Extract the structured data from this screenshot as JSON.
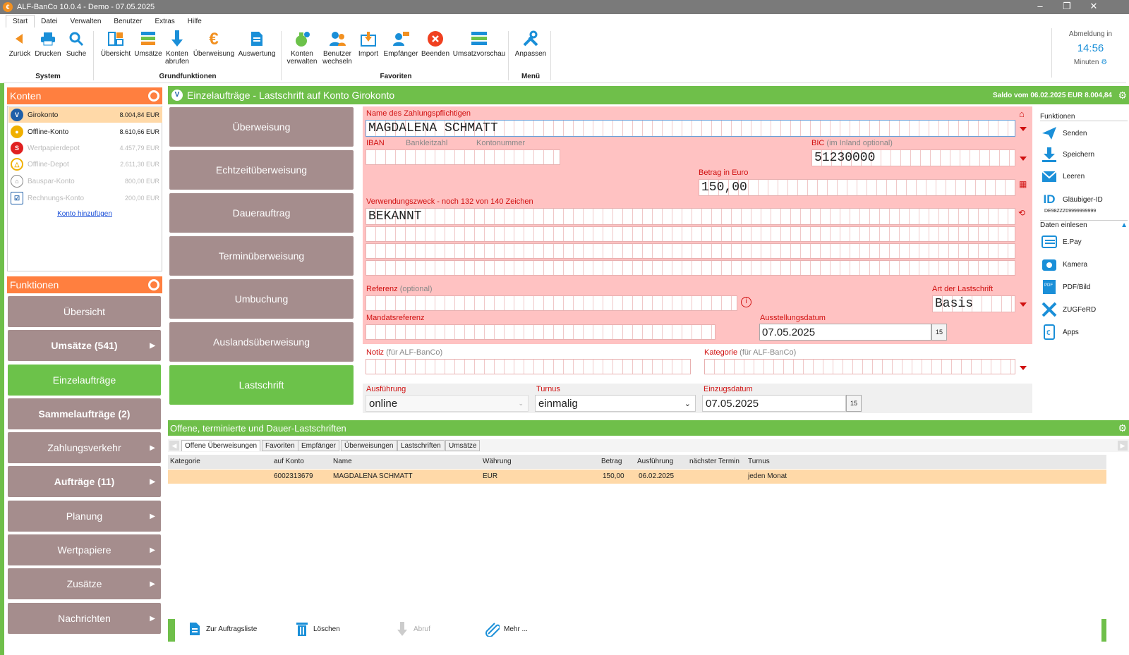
{
  "window": {
    "title": "ALF-BanCo 10.0.4 - Demo  - 07.05.2025",
    "minimize": "–",
    "maximize": "❐",
    "close": "✕"
  },
  "menu": [
    "Start",
    "Datei",
    "Verwalten",
    "Benutzer",
    "Extras",
    "Hilfe"
  ],
  "ribbon": {
    "system": {
      "title": "System",
      "buttons": [
        "Zurück",
        "Drucken",
        "Suche"
      ]
    },
    "grund": {
      "title": "Grundfunktionen",
      "buttons": [
        "Übersicht",
        "Umsätze",
        "Konten\nabrufen",
        "Überweisung",
        "Auswertung"
      ]
    },
    "favoriten": {
      "title": "Favoriten",
      "buttons": [
        "Konten\nverwalten",
        "Benutzer\nwechseln",
        "Import",
        "Empfänger",
        "Beenden",
        "Umsatzvorschau"
      ]
    },
    "menue": {
      "title": "Menü",
      "buttons": [
        "Anpassen"
      ]
    }
  },
  "session": {
    "label": "Abmeldung in",
    "time": "14:56",
    "unit": "Minuten"
  },
  "konten": {
    "title": "Konten",
    "items": [
      {
        "name": "Girokonto",
        "value": "8.004,84 EUR",
        "color": "#1f5fa8"
      },
      {
        "name": "Offline-Konto",
        "value": "8.610,66 EUR",
        "color": "#f0b000"
      },
      {
        "name": "Wertpapierdepot",
        "value": "4.457,79 EUR",
        "color": "#e02020"
      },
      {
        "name": "Offline-Depot",
        "value": "2.611,30 EUR",
        "color": "#f0b000"
      },
      {
        "name": "Bauspar-Konto",
        "value": "800,00 EUR",
        "color": "#888"
      },
      {
        "name": "Rechnungs-Konto",
        "value": "200,00 EUR",
        "color": "#1f5fa8"
      }
    ],
    "add": "Konto hinzufügen"
  },
  "funktionen": {
    "title": "Funktionen",
    "items": [
      "Übersicht",
      "Umsätze (541)",
      "Einzelaufträge",
      "Sammelaufträge (2)",
      "Zahlungsverkehr",
      "Aufträge (11)",
      "Planung",
      "Wertpapiere",
      "Zusätze",
      "Nachrichten"
    ]
  },
  "main": {
    "title": "Einzelaufträge - Lastschrift auf Konto Girokonto",
    "saldo": "Saldo vom 06.02.2025 EUR 8.004,84"
  },
  "types": [
    "Überweisung",
    "Echtzeitüberweisung",
    "Dauerauftrag",
    "Terminüberweisung",
    "Umbuchung",
    "Auslandsüberweisung",
    "Lastschrift"
  ],
  "form": {
    "name_label": "Name des Zahlungspflichtigen",
    "name_value": "MAGDALENA SCHMATT",
    "iban_label": "IBAN",
    "blz_label": "Bankleitzahl",
    "kto_label": "Kontonummer",
    "bic_label": "BIC",
    "bic_opt": "(im Inland optional)",
    "bic_value": "51230000",
    "betrag_label": "Betrag in Euro",
    "betrag_value": "150,00",
    "vz_label": "Verwendungszweck - noch 132 von 140 Zeichen",
    "vz_value": "BEKANNT",
    "ref_label": "Referenz",
    "ref_opt": "(optional)",
    "art_label": "Art der Lastschrift",
    "art_value": "Basis",
    "mandat_label": "Mandatsreferenz",
    "ausst_label": "Ausstellungsdatum",
    "ausst_value": "07.05.2025",
    "notiz_label": "Notiz",
    "notiz_opt": "(für ALF-BanCo)",
    "kat_label": "Kategorie",
    "kat_opt": "(für ALF-BanCo)",
    "ausf_label": "Ausführung",
    "ausf_value": "online",
    "turnus_label": "Turnus",
    "turnus_value": "einmalig",
    "einzug_label": "Einzugsdatum",
    "einzug_value": "07.05.2025"
  },
  "rfunc": {
    "title": "Funktionen",
    "items": [
      "Senden",
      "Speichern",
      "Leeren",
      "Gläubiger-ID"
    ],
    "glaeubiger": "DE98ZZZ09999999999",
    "daten_title": "Daten einlesen",
    "daten": [
      "E.Pay",
      "Kamera",
      "PDF/Bild",
      "ZUGFeRD",
      "Apps"
    ]
  },
  "list": {
    "title": "Offene, terminierte und Dauer-Lastschriften",
    "tabs": [
      "Offene Überweisungen",
      "Favoriten",
      "Empfänger",
      "Überweisungen",
      "Lastschriften",
      "Umsätze"
    ],
    "columns": [
      "Kategorie",
      "auf Konto",
      "Name",
      "Währung",
      "Betrag",
      "Ausführung",
      "nächster Termin",
      "Turnus"
    ],
    "rows": [
      {
        "kategorie": "",
        "konto": "6002313679",
        "name": "MAGDALENA SCHMATT",
        "waehrung": "EUR",
        "betrag": "150,00",
        "ausfuehrung": "06.02.2025",
        "naechster": "",
        "turnus": "jeden Monat"
      }
    ]
  },
  "bottom": [
    "Zur Auftragsliste",
    "Löschen",
    "Abruf",
    "Mehr ..."
  ],
  "colors": {
    "green": "#6cc24a",
    "orange": "#ff7f3f",
    "taupe": "#a58d8d",
    "pink": "#ffc2c2",
    "red": "#d01010"
  }
}
